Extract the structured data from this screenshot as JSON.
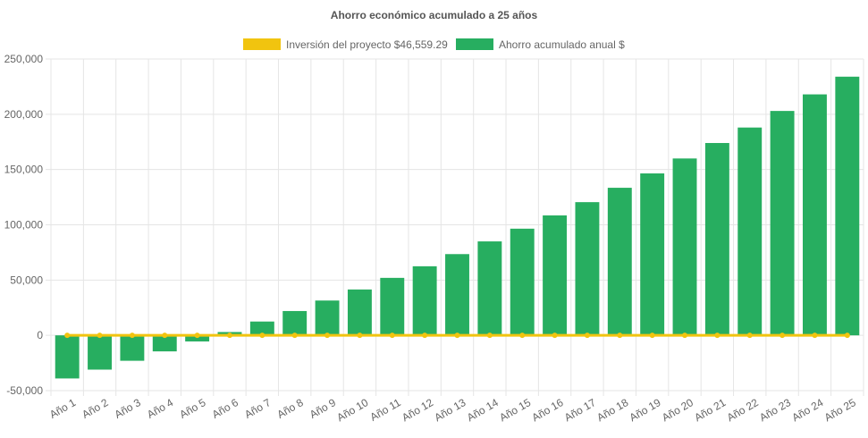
{
  "chart_data": {
    "type": "bar",
    "title": "Ahorro económico acumulado a 25 años",
    "legend_position": "top",
    "grid": true,
    "ylim": [
      -50000,
      250000
    ],
    "y_ticks": [
      -50000,
      0,
      50000,
      100000,
      150000,
      200000,
      250000
    ],
    "y_tick_labels": [
      "-50,000",
      "0",
      "50,000",
      "100,000",
      "150,000",
      "200,000",
      "250,000"
    ],
    "categories": [
      "Año 1",
      "Año 2",
      "Año 3",
      "Año 4",
      "Año 5",
      "Año 6",
      "Año 7",
      "Año 8",
      "Año 9",
      "Año 10",
      "Año 11",
      "Año 12",
      "Año 13",
      "Año 14",
      "Año 15",
      "Año 16",
      "Año 17",
      "Año 18",
      "Año 19",
      "Año 20",
      "Año 21",
      "Año 22",
      "Año 23",
      "Año 24",
      "Año 25"
    ],
    "series": [
      {
        "name": "Inversión del proyecto $46,559.29",
        "type": "line",
        "color": "#f1c40f",
        "values": [
          0,
          0,
          0,
          0,
          0,
          0,
          0,
          0,
          0,
          0,
          0,
          0,
          0,
          0,
          0,
          0,
          0,
          0,
          0,
          0,
          0,
          0,
          0,
          0,
          0
        ]
      },
      {
        "name": "Ahorro acumulado anual $",
        "type": "bar",
        "color": "#27ae60",
        "values": [
          -39000,
          -31000,
          -23000,
          -14500,
          -5500,
          3000,
          12500,
          22000,
          31500,
          41500,
          52000,
          62500,
          73500,
          85000,
          96500,
          108500,
          120500,
          133500,
          146500,
          160000,
          174000,
          188000,
          203000,
          218000,
          234000
        ]
      }
    ]
  }
}
